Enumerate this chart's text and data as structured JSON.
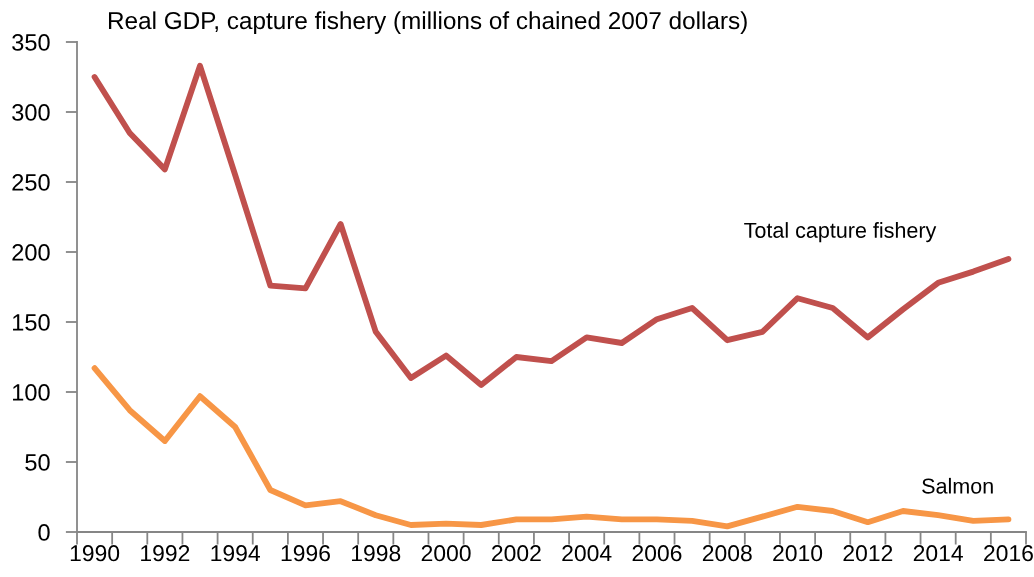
{
  "chart_data": {
    "type": "line",
    "title": "Real GDP, capture fishery (millions of chained 2007 dollars)",
    "categories": [
      "1990",
      null,
      "1992",
      null,
      "1994",
      null,
      "1996",
      null,
      "1998",
      null,
      "2000",
      null,
      "2002",
      null,
      "2004",
      null,
      "2006",
      null,
      "2008",
      null,
      "2010",
      null,
      "2012",
      null,
      "2014",
      null,
      "2016"
    ],
    "series": [
      {
        "name": "Total capture fishery",
        "color": "#c0504d",
        "values": [
          325,
          285,
          259,
          333,
          255,
          176,
          174,
          220,
          143,
          110,
          126,
          105,
          125,
          122,
          139,
          135,
          152,
          160,
          137,
          143,
          167,
          160,
          139,
          159,
          178,
          186,
          195
        ]
      },
      {
        "name": "Salmon",
        "color": "#f79646",
        "values": [
          117,
          87,
          65,
          97,
          75,
          30,
          19,
          22,
          12,
          5,
          6,
          5,
          9,
          9,
          11,
          9,
          9,
          8,
          4,
          11,
          18,
          15,
          7,
          15,
          12,
          8,
          9
        ]
      }
    ],
    "ylim": [
      0,
      350
    ],
    "yticks": [
      0,
      50,
      100,
      150,
      200,
      250,
      300,
      350
    ],
    "legend": false,
    "grid": false
  }
}
